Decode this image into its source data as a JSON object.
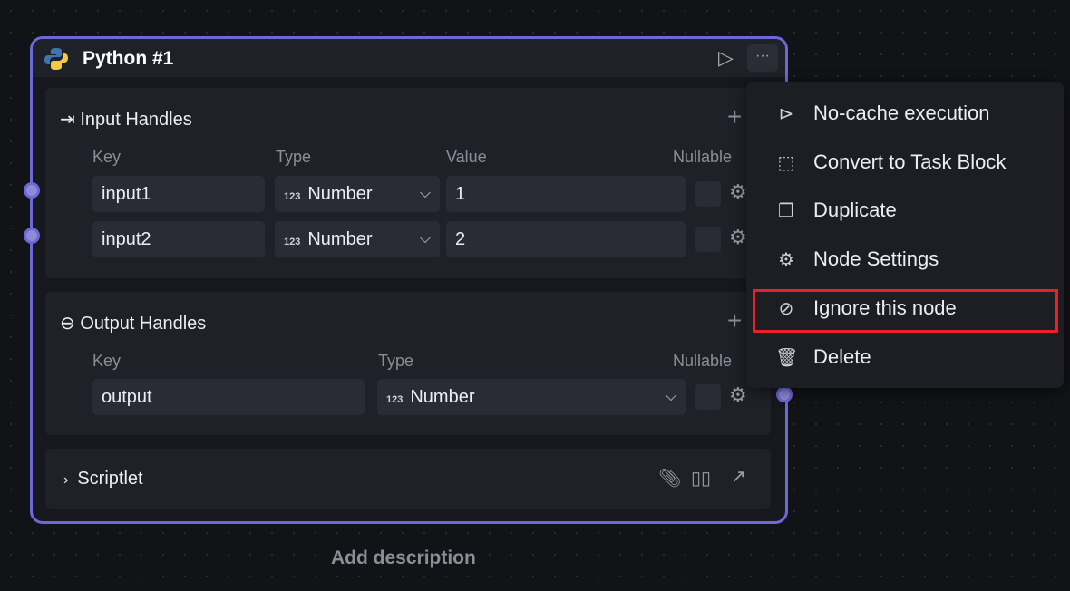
{
  "node": {
    "title": "Python #1",
    "icon": "python-logo",
    "border_color": "#6c68d8",
    "input_handles": {
      "title": "Input Handles",
      "headers": {
        "key": "Key",
        "type": "Type",
        "value": "Value",
        "nullable": "Nullable"
      },
      "rows": [
        {
          "key": "input1",
          "type": "Number",
          "type_icon": "123",
          "value": "1"
        },
        {
          "key": "input2",
          "type": "Number",
          "type_icon": "123",
          "value": "2"
        }
      ]
    },
    "output_handles": {
      "title": "Output Handles",
      "headers": {
        "key": "Key",
        "type": "Type",
        "nullable": "Nullable"
      },
      "rows": [
        {
          "key": "output",
          "type": "Number",
          "type_icon": "123"
        }
      ]
    },
    "scriptlet": {
      "title": "Scriptlet"
    }
  },
  "add_description": "Add description",
  "menu": {
    "items": [
      {
        "label": "No-cache execution",
        "icon": "double-play-icon"
      },
      {
        "label": "Convert to Task Block",
        "icon": "cube-icon"
      },
      {
        "label": "Duplicate",
        "icon": "copy-icon"
      },
      {
        "label": "Node Settings",
        "icon": "gear-icon"
      },
      {
        "label": "Ignore this node",
        "icon": "ban-icon",
        "highlighted": true
      },
      {
        "label": "Delete",
        "icon": "trash-icon"
      }
    ],
    "highlight_color": "#e8202a"
  }
}
